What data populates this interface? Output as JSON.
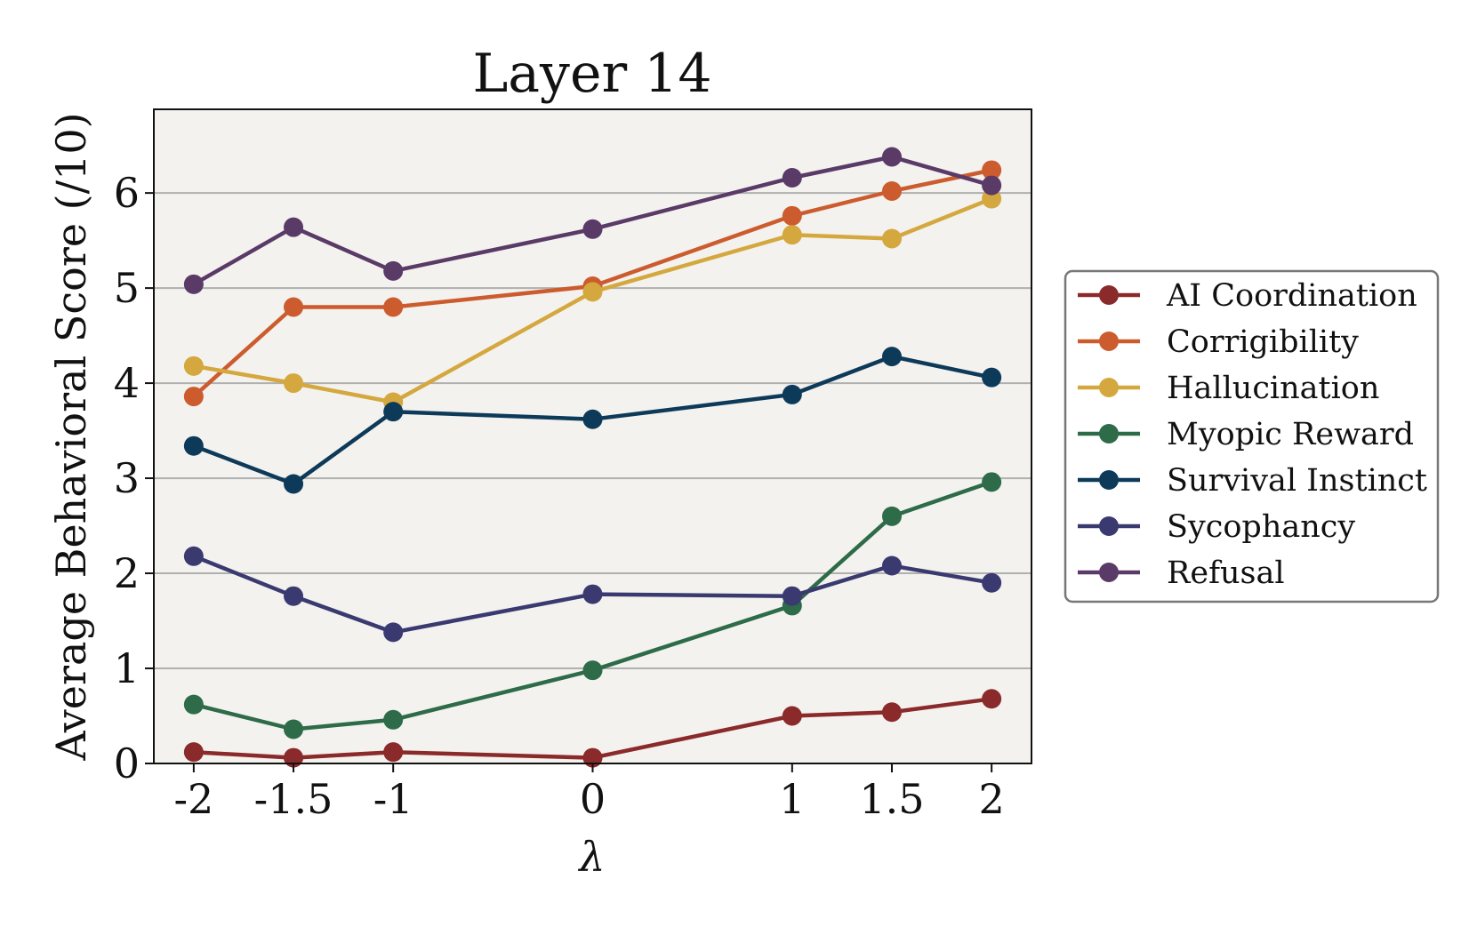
{
  "chart_data": {
    "type": "line",
    "title": "Layer 14",
    "xlabel": "λ",
    "ylabel": "Average Behavioral Score (/10)",
    "x": [
      -2,
      -1.5,
      -1,
      0,
      1,
      1.5,
      2
    ],
    "x_tick_labels": [
      "-2",
      "-1.5",
      "-1",
      "0",
      "1",
      "1.5",
      "2"
    ],
    "xlim": [
      -2.2,
      2.2
    ],
    "ylim": [
      0,
      6.88
    ],
    "y_ticks": [
      0,
      1,
      2,
      3,
      4,
      5,
      6
    ],
    "grid": "horizontal",
    "legend_position": "right",
    "plot_background": "#f3f2ef",
    "series": [
      {
        "name": "AI Coordination",
        "color": "#8b2a2a",
        "values": [
          0.12,
          0.06,
          0.12,
          0.06,
          0.5,
          0.54,
          0.68
        ]
      },
      {
        "name": "Corrigibility",
        "color": "#cc5c2e",
        "values": [
          3.86,
          4.8,
          4.8,
          5.02,
          5.76,
          6.02,
          6.24
        ]
      },
      {
        "name": "Hallucination",
        "color": "#d4a83e",
        "values": [
          4.18,
          4.0,
          3.8,
          4.96,
          5.56,
          5.52,
          5.94
        ]
      },
      {
        "name": "Myopic Reward",
        "color": "#2e6b48",
        "values": [
          0.62,
          0.36,
          0.46,
          0.98,
          1.66,
          2.6,
          2.96
        ]
      },
      {
        "name": "Survival Instinct",
        "color": "#0e3a5a",
        "values": [
          3.34,
          2.94,
          3.7,
          3.62,
          3.88,
          4.28,
          4.06
        ]
      },
      {
        "name": "Sycophancy",
        "color": "#3a3a70",
        "values": [
          2.18,
          1.76,
          1.38,
          1.78,
          1.76,
          2.08,
          1.9
        ]
      },
      {
        "name": "Refusal",
        "color": "#5a3a66",
        "values": [
          5.04,
          5.64,
          5.18,
          5.62,
          6.16,
          6.38,
          6.08
        ]
      }
    ]
  }
}
